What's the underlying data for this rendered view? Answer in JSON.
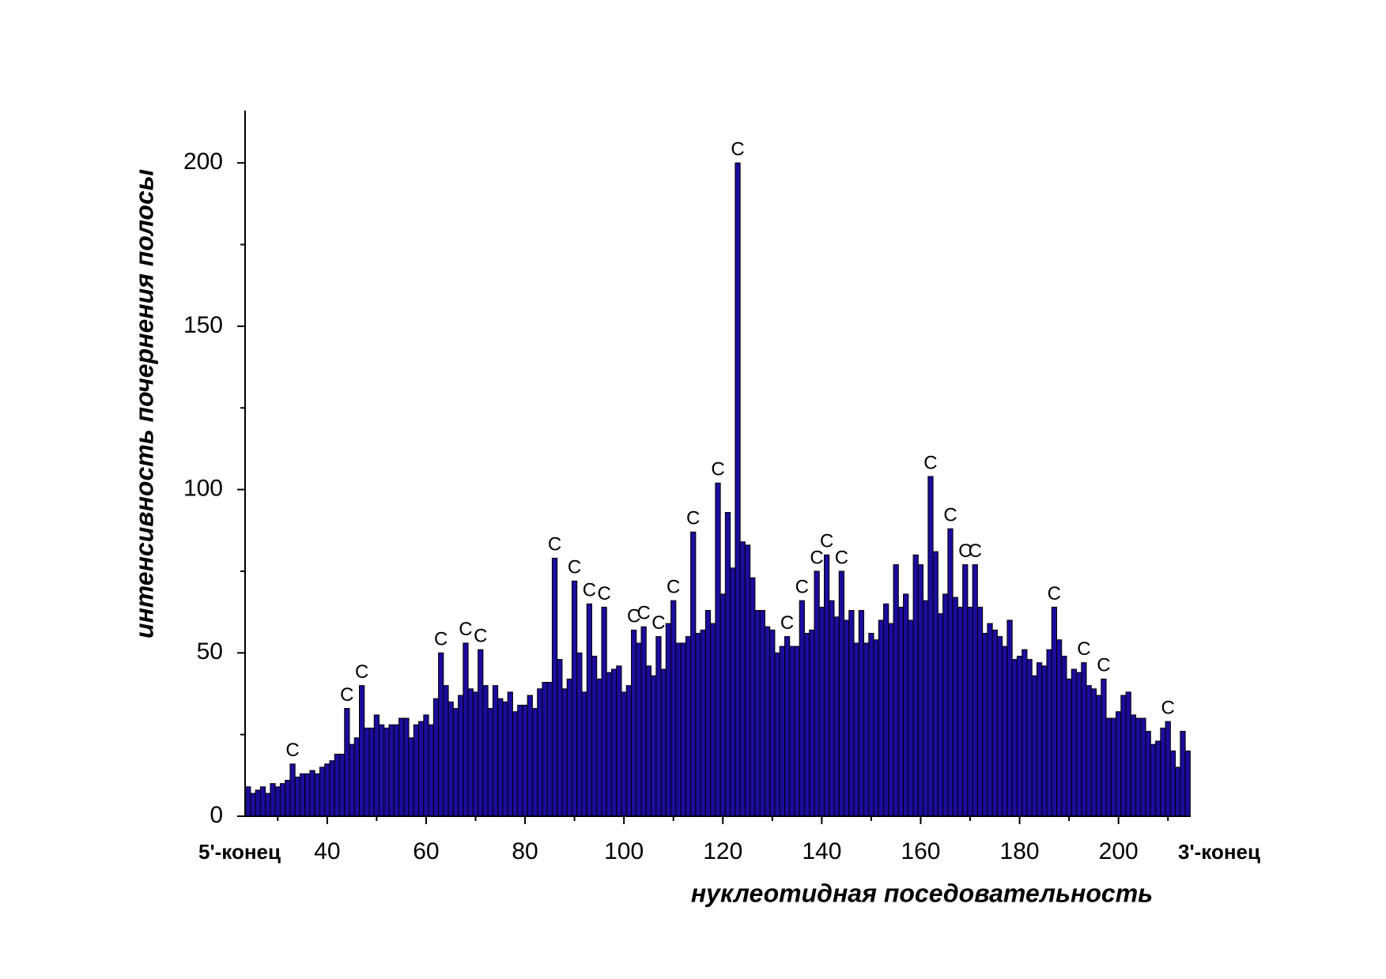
{
  "chart_data": {
    "type": "bar",
    "ylabel": "интенсивность почернения полосы",
    "xlabel": "нуклеотидная поседовательность",
    "end_labels": [
      "5'-конец",
      "3'-конец"
    ],
    "color": "#1c0c9c",
    "x": [
      24,
      25,
      26,
      27,
      28,
      29,
      30,
      31,
      32,
      33,
      34,
      35,
      36,
      37,
      38,
      39,
      40,
      41,
      42,
      43,
      44,
      45,
      46,
      47,
      48,
      49,
      50,
      51,
      52,
      53,
      54,
      55,
      56,
      57,
      58,
      59,
      60,
      61,
      62,
      63,
      64,
      65,
      66,
      67,
      68,
      69,
      70,
      71,
      72,
      73,
      74,
      75,
      76,
      77,
      78,
      79,
      80,
      81,
      82,
      83,
      84,
      85,
      86,
      87,
      88,
      89,
      90,
      91,
      92,
      93,
      94,
      95,
      96,
      97,
      98,
      99,
      100,
      101,
      102,
      103,
      104,
      105,
      106,
      107,
      108,
      109,
      110,
      111,
      112,
      113,
      114,
      115,
      116,
      117,
      118,
      119,
      120,
      121,
      122,
      123,
      124,
      125,
      126,
      127,
      128,
      129,
      130,
      131,
      132,
      133,
      134,
      135,
      136,
      137,
      138,
      139,
      140,
      141,
      142,
      143,
      144,
      145,
      146,
      147,
      148,
      149,
      150,
      151,
      152,
      153,
      154,
      155,
      156,
      157,
      158,
      159,
      160,
      161,
      162,
      163,
      164,
      165,
      166,
      167,
      168,
      169,
      170,
      171,
      172,
      173,
      174,
      175,
      176,
      177,
      178,
      179,
      180,
      181,
      182,
      183,
      184,
      185,
      186,
      187,
      188,
      189,
      190,
      191,
      192,
      193,
      194,
      195,
      196,
      197,
      198,
      199,
      200,
      201,
      202,
      203,
      204,
      205,
      206,
      207,
      208,
      209,
      210,
      211,
      212,
      213,
      214
    ],
    "values": [
      9,
      7,
      8,
      9,
      7,
      10,
      9,
      10,
      11,
      16,
      12,
      13,
      13,
      14,
      13,
      15,
      16,
      17,
      19,
      19,
      33,
      22,
      24,
      40,
      27,
      27,
      31,
      28,
      27,
      28,
      28,
      30,
      30,
      24,
      28,
      29,
      31,
      28,
      36,
      50,
      40,
      35,
      33,
      37,
      53,
      39,
      38,
      51,
      40,
      33,
      40,
      36,
      35,
      38,
      32,
      34,
      34,
      37,
      33,
      39,
      41,
      41,
      79,
      48,
      39,
      42,
      72,
      50,
      38,
      65,
      49,
      42,
      64,
      44,
      45,
      46,
      38,
      40,
      57,
      53,
      58,
      46,
      43,
      55,
      45,
      59,
      66,
      53,
      53,
      55,
      87,
      56,
      57,
      63,
      59,
      102,
      68,
      93,
      76,
      200,
      84,
      83,
      73,
      63,
      63,
      58,
      57,
      50,
      52,
      55,
      52,
      52,
      66,
      56,
      57,
      75,
      64,
      80,
      66,
      61,
      75,
      60,
      63,
      53,
      63,
      53,
      56,
      54,
      60,
      65,
      59,
      77,
      64,
      68,
      60,
      80,
      77,
      66,
      104,
      81,
      62,
      68,
      88,
      67,
      64,
      77,
      64,
      77,
      64,
      56,
      59,
      57,
      55,
      52,
      60,
      48,
      49,
      51,
      48,
      43,
      47,
      46,
      51,
      64,
      54,
      49,
      42,
      45,
      44,
      47,
      40,
      39,
      37,
      42,
      30,
      30,
      32,
      37,
      38,
      31,
      30,
      30,
      26,
      22,
      23,
      27,
      29,
      20,
      15,
      26,
      20
    ],
    "annotations": [
      {
        "x": 33,
        "text": "C"
      },
      {
        "x": 44,
        "text": "C"
      },
      {
        "x": 47,
        "text": "C"
      },
      {
        "x": 63,
        "text": "C"
      },
      {
        "x": 68,
        "text": "C"
      },
      {
        "x": 71,
        "text": "C"
      },
      {
        "x": 86,
        "text": "C"
      },
      {
        "x": 90,
        "text": "C"
      },
      {
        "x": 93,
        "text": "C"
      },
      {
        "x": 96,
        "text": "C"
      },
      {
        "x": 102,
        "text": "C"
      },
      {
        "x": 104,
        "text": "C"
      },
      {
        "x": 107,
        "text": "C"
      },
      {
        "x": 110,
        "text": "C"
      },
      {
        "x": 114,
        "text": "C"
      },
      {
        "x": 119,
        "text": "C"
      },
      {
        "x": 123,
        "text": "C"
      },
      {
        "x": 133,
        "text": "C"
      },
      {
        "x": 136,
        "text": "C"
      },
      {
        "x": 139,
        "text": "C"
      },
      {
        "x": 141,
        "text": "C"
      },
      {
        "x": 144,
        "text": "C"
      },
      {
        "x": 162,
        "text": "C"
      },
      {
        "x": 166,
        "text": "C"
      },
      {
        "x": 169,
        "text": "C"
      },
      {
        "x": 171,
        "text": "C"
      },
      {
        "x": 187,
        "text": "C"
      },
      {
        "x": 193,
        "text": "C"
      },
      {
        "x": 197,
        "text": "C"
      },
      {
        "x": 210,
        "text": "C"
      }
    ],
    "xlim": [
      23.4,
      214.6
    ],
    "ylim": [
      0,
      216
    ],
    "xticks": [
      40,
      60,
      80,
      100,
      120,
      140,
      160,
      180,
      200
    ],
    "xminorticks": [
      30,
      50,
      70,
      90,
      110,
      130,
      150,
      170,
      190,
      210
    ],
    "yticks": [
      0,
      50,
      100,
      150,
      200
    ],
    "yminorticks": [
      25,
      75,
      125,
      175
    ]
  }
}
